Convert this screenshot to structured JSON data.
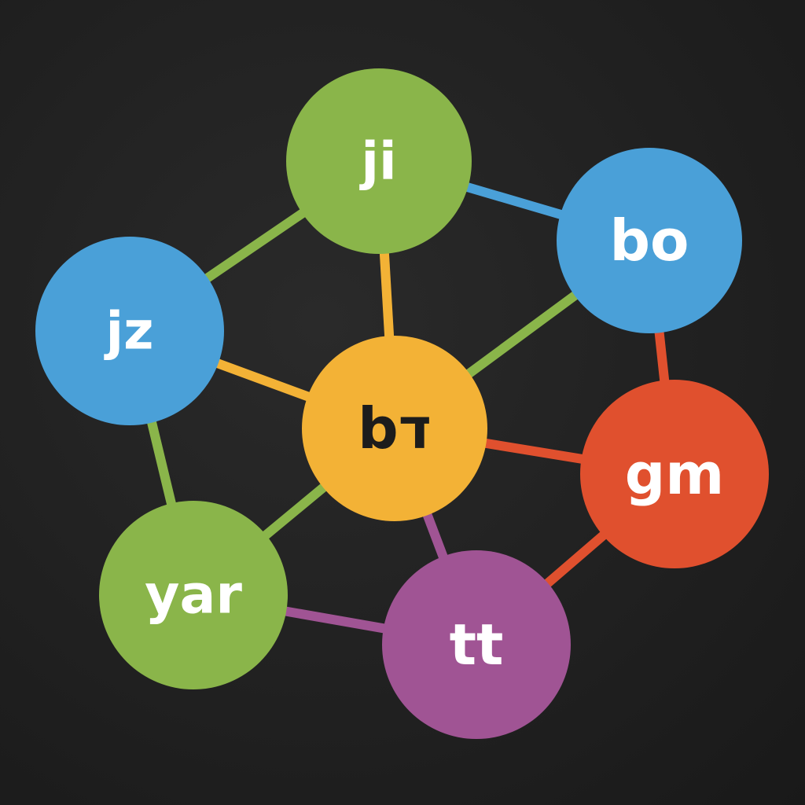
{
  "graph": {
    "nodes": [
      {
        "id": "ji",
        "label": "ji",
        "color": "#8ab54a",
        "text_color": "#ffffff"
      },
      {
        "id": "bo",
        "label": "bo",
        "color": "#4aa0d8",
        "text_color": "#ffffff"
      },
      {
        "id": "jz",
        "label": "jz",
        "color": "#4aa0d8",
        "text_color": "#ffffff"
      },
      {
        "id": "b7",
        "label": "bד",
        "color": "#f3b236",
        "text_color": "#1c1c1c"
      },
      {
        "id": "gm",
        "label": "gm",
        "color": "#e0502e",
        "text_color": "#ffffff"
      },
      {
        "id": "yar",
        "label": "yar",
        "color": "#8ab54a",
        "text_color": "#ffffff"
      },
      {
        "id": "tt",
        "label": "tt",
        "color": "#a05494",
        "text_color": "#ffffff"
      }
    ],
    "edges": [
      {
        "from": "ji",
        "to": "bo",
        "color": "#4aa0d8"
      },
      {
        "from": "ji",
        "to": "jz",
        "color": "#8ab54a"
      },
      {
        "from": "ji",
        "to": "b7",
        "color": "#f3b236"
      },
      {
        "from": "jz",
        "to": "b7",
        "color": "#f3b236"
      },
      {
        "from": "jz",
        "to": "yar",
        "color": "#8ab54a"
      },
      {
        "from": "bo",
        "to": "b7",
        "color": "#8ab54a"
      },
      {
        "from": "bo",
        "to": "gm",
        "color": "#e0502e"
      },
      {
        "from": "b7",
        "to": "gm",
        "color": "#e0502e"
      },
      {
        "from": "b7",
        "to": "yar",
        "color": "#8ab54a"
      },
      {
        "from": "b7",
        "to": "tt",
        "color": "#a05494"
      },
      {
        "from": "yar",
        "to": "tt",
        "color": "#a05494"
      },
      {
        "from": "gm",
        "to": "tt",
        "color": "#e0502e"
      }
    ]
  }
}
